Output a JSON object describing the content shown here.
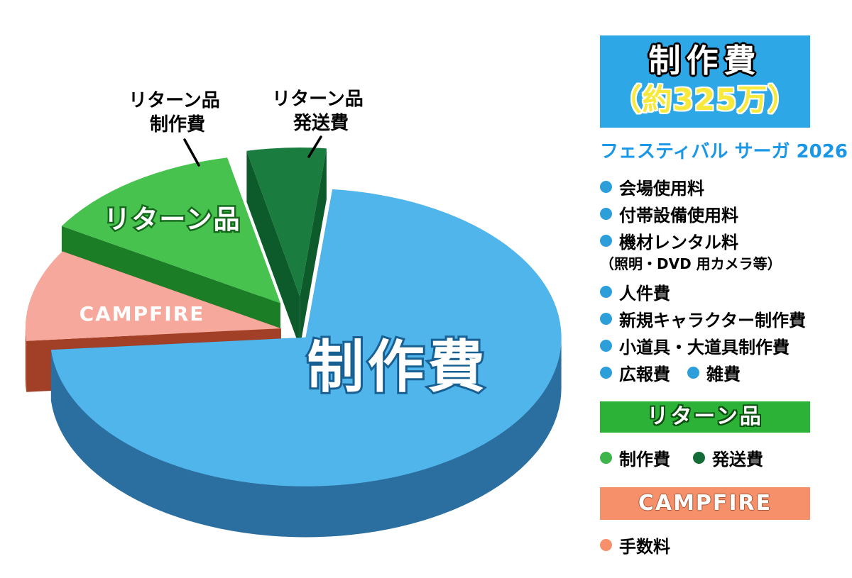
{
  "chart_data": {
    "type": "pie",
    "style": "3d-exploded",
    "title": "制作費（約325万）",
    "subtitle": "フェスティバル サーガ 2026",
    "legend_position": "right",
    "slices": [
      {
        "label": "制作費",
        "value": 72,
        "color": "#4FB5EB",
        "side_color": "#2B6FA0"
      },
      {
        "label": "CAMPFIRE（手数料）",
        "value": 10,
        "color": "#F5A89B",
        "side_color": "#A14026"
      },
      {
        "label": "リターン品 制作費",
        "value": 13,
        "color": "#47C24E",
        "side_color": "#1B7D25"
      },
      {
        "label": "リターン品 発送費",
        "value": 5,
        "color": "#1A7C3E",
        "side_color": "#0D5A2B"
      }
    ]
  },
  "pie": {
    "main_label": "制作費",
    "campfire_label": "CAMPFIRE",
    "return_label": "リターン品",
    "callout_left": {
      "line1": "リターン品",
      "line2": "制作費"
    },
    "callout_right": {
      "line1": "リターン品",
      "line2": "発送費"
    }
  },
  "panel": {
    "production": {
      "title": "制作費",
      "amount": "（約325万）",
      "project": "フェスティバル サーガ 2026",
      "header_bg": "#2EA7E6",
      "bullet_color": "#2C9FDB",
      "items": [
        {
          "label": "会場使用料"
        },
        {
          "label": "付帯設備使用料"
        },
        {
          "label": "機材レンタル料",
          "note": "（照明・DVD 用カメラ等）"
        },
        {
          "label": "人件費"
        },
        {
          "label": "新規キャラクター制作費"
        },
        {
          "label": "小道具・大道具制作費"
        },
        {
          "label": "広報費",
          "label2": "雑費"
        }
      ]
    },
    "returns": {
      "title": "リターン品",
      "header_bg": "#2CB236",
      "items": [
        {
          "label": "制作費",
          "color": "#3DB54A"
        },
        {
          "label": "発送費",
          "color": "#136C35"
        }
      ]
    },
    "campfire": {
      "title": "CAMPFIRE",
      "header_bg": "#F5906B",
      "items": [
        {
          "label": "手数料",
          "color": "#F5906B"
        }
      ]
    }
  }
}
